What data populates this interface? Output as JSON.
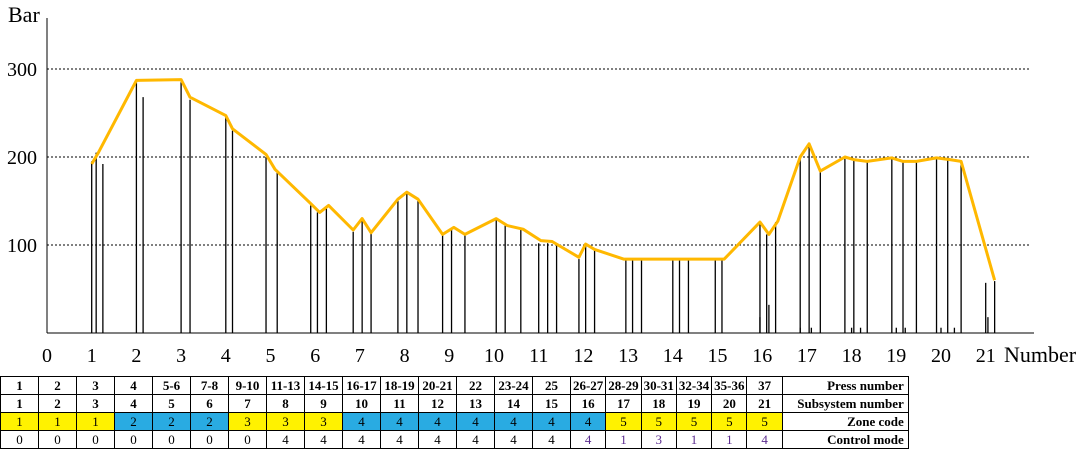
{
  "chart_data": {
    "type": "line",
    "ylabel": "Bar",
    "xlabel": "Number",
    "xlim": [
      0,
      22
    ],
    "ylim": [
      0,
      350
    ],
    "x_ticks": [
      0,
      1,
      2,
      3,
      4,
      5,
      6,
      7,
      8,
      9,
      10,
      11,
      12,
      13,
      14,
      15,
      16,
      17,
      18,
      19,
      20,
      21
    ],
    "y_ticks": [
      100,
      200,
      300
    ],
    "grid": "horizontal dashed at 100, 200, 300",
    "line_color": "#FFB800",
    "series": [
      {
        "values_x": [
          1.0,
          1.15,
          2.0,
          3.0,
          3.2,
          4.0,
          4.15,
          4.9,
          5.1,
          5.9,
          6.1,
          6.3,
          6.85,
          7.05,
          7.25,
          7.85,
          8.05,
          8.3,
          8.85,
          9.1,
          9.35,
          10.05,
          10.3,
          10.65,
          11.05,
          11.3,
          11.9,
          12.05,
          12.25,
          12.9,
          13.1,
          13.3,
          14.0,
          14.2,
          14.4,
          14.95,
          15.15,
          15.95,
          16.15,
          16.35,
          16.85,
          17.05,
          17.3,
          17.85,
          18.05,
          18.35,
          18.9,
          19.15,
          19.45,
          19.9,
          20.2,
          20.45,
          21.2
        ],
        "values_y": [
          192,
          205,
          287,
          288,
          268,
          247,
          232,
          203,
          186,
          147,
          137,
          145,
          117,
          130,
          114,
          152,
          160,
          152,
          112,
          120,
          112,
          130,
          122,
          118,
          105,
          104,
          86,
          101,
          95,
          84,
          84,
          84,
          84,
          84,
          84,
          84,
          84,
          126,
          112,
          127,
          200,
          215,
          184,
          200,
          197,
          195,
          199,
          195,
          195,
          199,
          197,
          195,
          60
        ]
      }
    ],
    "vertical_lines": {
      "x": [
        1.0,
        1.1,
        1.25,
        2.0,
        2.15,
        3.0,
        3.2,
        4.0,
        4.15,
        4.9,
        5.15,
        5.9,
        6.05,
        6.25,
        6.85,
        7.05,
        7.25,
        7.85,
        8.05,
        8.3,
        8.85,
        9.05,
        9.35,
        10.05,
        10.25,
        10.6,
        11.0,
        11.2,
        11.4,
        11.9,
        12.05,
        12.25,
        12.95,
        13.1,
        13.3,
        14.0,
        14.15,
        14.35,
        14.95,
        15.1,
        15.95,
        16.1,
        16.3,
        16.85,
        17.05,
        17.3,
        17.85,
        18.05,
        18.35,
        18.9,
        19.15,
        19.45,
        19.9,
        20.15,
        20.45,
        21.0,
        21.2
      ],
      "y": [
        195,
        205,
        192,
        285,
        268,
        285,
        265,
        245,
        230,
        200,
        182,
        145,
        137,
        142,
        115,
        128,
        114,
        150,
        158,
        150,
        112,
        118,
        112,
        128,
        122,
        118,
        102,
        102,
        100,
        84,
        100,
        94,
        84,
        84,
        84,
        84,
        84,
        84,
        84,
        84,
        124,
        112,
        126,
        198,
        212,
        184,
        198,
        196,
        194,
        198,
        194,
        194,
        198,
        196,
        194,
        57,
        59
      ]
    },
    "short_markers": {
      "x": [
        15.95,
        16.15,
        16.85,
        17.1,
        18.0,
        18.2,
        19.0,
        19.2,
        20.0,
        20.3,
        21.05
      ],
      "y": [
        18,
        32,
        6,
        6,
        6,
        6,
        6,
        6,
        6,
        6,
        18
      ]
    }
  },
  "table": {
    "rows": [
      {
        "label": "Press number",
        "cells": [
          "1",
          "2",
          "3",
          "4",
          "5-6",
          "7-8",
          "9-10",
          "11-13",
          "14-15",
          "16-17",
          "18-19",
          "20-21",
          "22",
          "23-24",
          "25",
          "26-27",
          "28-29",
          "30-31",
          "32-34",
          "35-36",
          "37"
        ]
      },
      {
        "label": "Subsystem number",
        "cells": [
          "1",
          "2",
          "3",
          "4",
          "5",
          "6",
          "7",
          "8",
          "9",
          "10",
          "11",
          "12",
          "13",
          "14",
          "15",
          "16",
          "17",
          "18",
          "19",
          "20",
          "21"
        ]
      },
      {
        "label": "Zone code",
        "cells": [
          "1",
          "1",
          "1",
          "2",
          "2",
          "2",
          "3",
          "3",
          "3",
          "4",
          "4",
          "4",
          "4",
          "4",
          "4",
          "4",
          "5",
          "5",
          "5",
          "5",
          "5"
        ]
      },
      {
        "label": "Control mode",
        "cells": [
          "0",
          "0",
          "0",
          "0",
          "0",
          "0",
          "0",
          "4",
          "4",
          "4",
          "4",
          "4",
          "4",
          "4",
          "4",
          "4",
          "1",
          "3",
          "1",
          "1",
          "4"
        ]
      }
    ],
    "zone_colors": {
      "1": "#FFF200",
      "2": "#29ABE2",
      "3": "#FFF200",
      "4": "#29ABE2",
      "5": "#FFF200"
    },
    "control_mode_highlight_color": "#5B2C8F"
  }
}
